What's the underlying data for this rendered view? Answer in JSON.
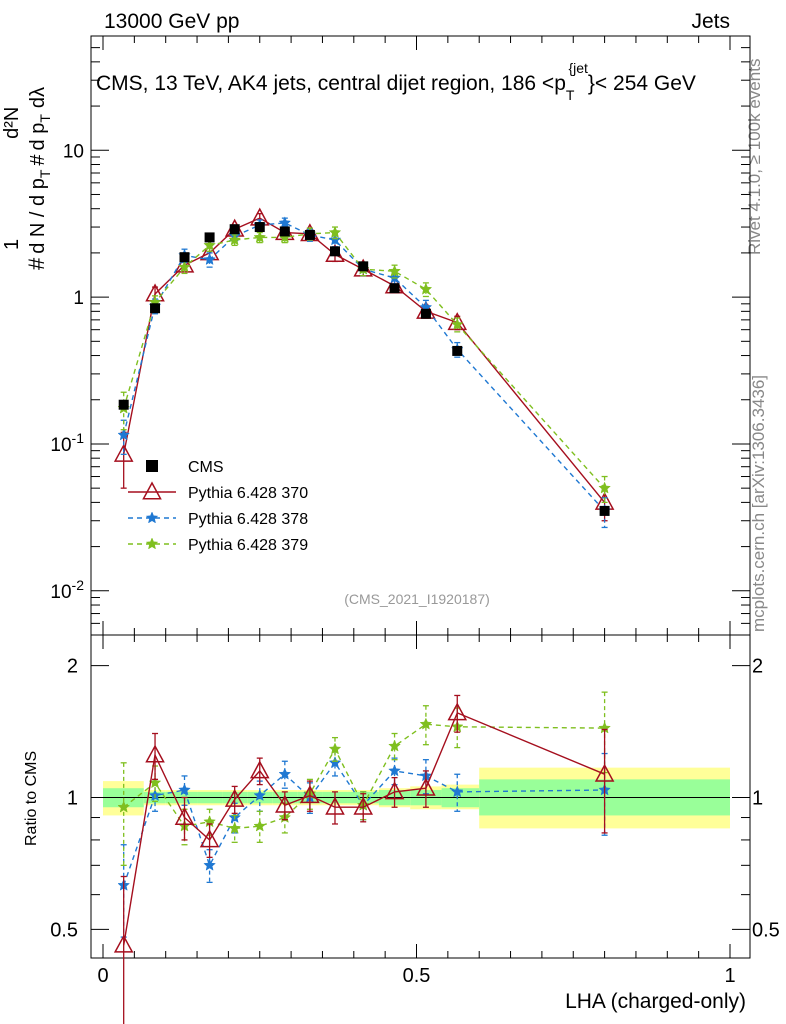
{
  "header": {
    "energy_label": "13000 GeV pp",
    "category_label": "Jets",
    "plot_title": "CMS, 13 TeV, AK4 jets, central dijet region, 186 < p_T^{jet} < 254 GeV",
    "analysis_id": "(CMS_2021_I1920187)"
  },
  "side_labels": {
    "rivet": "Rivet 4.1.0, ≥ 100k events",
    "site": "mcplots.cern.ch [arXiv:1306.3436]"
  },
  "colors": {
    "cms": "#000000",
    "p370": "#a50f1e",
    "p378": "#1f78d2",
    "p379": "#7fbf1f",
    "band_outer": "#ffff99",
    "band_inner": "#99ff99"
  },
  "chart_data": [
    {
      "type": "scatter",
      "name": "main",
      "yscale": "log",
      "xlim": [
        0,
        1
      ],
      "ylim": [
        0.005,
        60
      ],
      "xlabel": "",
      "ylabel": "1/dN/dp_T # d²N / dp_T # dλ",
      "yticks": [
        0.01,
        0.1,
        1,
        10
      ],
      "ytick_labels": [
        "10^-2",
        "10^-1",
        "1",
        "10"
      ],
      "series": [
        {
          "name": "CMS",
          "style": "square",
          "x": [
            0.033,
            0.083,
            0.13,
            0.17,
            0.21,
            0.25,
            0.29,
            0.33,
            0.37,
            0.415,
            0.465,
            0.515,
            0.565,
            0.8
          ],
          "y": [
            0.185,
            0.84,
            1.87,
            2.55,
            2.9,
            3.0,
            2.8,
            2.65,
            2.05,
            1.62,
            1.15,
            0.77,
            0.43,
            0.035
          ]
        },
        {
          "name": "Pythia 6.428 370",
          "style": "triangle",
          "line": "solid",
          "x": [
            0.033,
            0.083,
            0.13,
            0.17,
            0.21,
            0.25,
            0.29,
            0.33,
            0.37,
            0.415,
            0.465,
            0.515,
            0.565,
            0.8
          ],
          "y": [
            0.085,
            1.05,
            1.65,
            2.0,
            2.9,
            3.45,
            2.75,
            2.7,
            1.95,
            1.55,
            1.19,
            0.8,
            0.67,
            0.04
          ],
          "err": [
            0.035,
            0.12,
            0.12,
            0.2,
            0.2,
            0.25,
            0.25,
            0.25,
            0.2,
            0.15,
            0.1,
            0.08,
            0.07,
            0.01
          ]
        },
        {
          "name": "Pythia 6.428 378",
          "style": "star",
          "line": "dashed",
          "x": [
            0.033,
            0.083,
            0.13,
            0.17,
            0.21,
            0.25,
            0.29,
            0.33,
            0.37,
            0.415,
            0.465,
            0.515,
            0.565,
            0.8
          ],
          "y": [
            0.115,
            0.87,
            1.92,
            1.8,
            2.6,
            3.1,
            3.2,
            2.65,
            2.45,
            1.55,
            1.35,
            0.85,
            0.44,
            0.035
          ],
          "err": [
            0.03,
            0.1,
            0.2,
            0.2,
            0.2,
            0.25,
            0.25,
            0.25,
            0.25,
            0.15,
            0.12,
            0.1,
            0.05,
            0.008
          ]
        },
        {
          "name": "Pythia 6.428 379",
          "style": "star",
          "line": "dashed",
          "x": [
            0.033,
            0.083,
            0.13,
            0.17,
            0.21,
            0.25,
            0.29,
            0.33,
            0.37,
            0.415,
            0.465,
            0.515,
            0.565,
            0.8
          ],
          "y": [
            0.175,
            0.92,
            1.6,
            2.25,
            2.45,
            2.55,
            2.55,
            2.7,
            2.75,
            1.55,
            1.5,
            1.13,
            0.65,
            0.05
          ],
          "err": [
            0.05,
            0.1,
            0.15,
            0.2,
            0.2,
            0.2,
            0.2,
            0.25,
            0.25,
            0.15,
            0.15,
            0.12,
            0.07,
            0.01
          ]
        }
      ],
      "legend": [
        "CMS",
        "Pythia 6.428 370",
        "Pythia 6.428 378",
        "Pythia 6.428 379"
      ],
      "legend_position": "lower-left"
    },
    {
      "type": "scatter",
      "name": "ratio",
      "yscale": "log",
      "xlim": [
        0,
        1
      ],
      "ylim": [
        0.43,
        2.35
      ],
      "xlabel": "LHA (charged-only)",
      "ylabel": "Ratio to CMS",
      "xticks": [
        0,
        0.5,
        1
      ],
      "xtick_labels": [
        "0",
        "0.5",
        "1"
      ],
      "yticks": [
        0.5,
        1,
        2
      ],
      "ytick_labels": [
        "0.5",
        "1",
        "2"
      ],
      "bins": [
        [
          0.0,
          0.065
        ],
        [
          0.065,
          0.1
        ],
        [
          0.1,
          0.15
        ],
        [
          0.15,
          0.19
        ],
        [
          0.19,
          0.23
        ],
        [
          0.23,
          0.27
        ],
        [
          0.27,
          0.31
        ],
        [
          0.31,
          0.35
        ],
        [
          0.35,
          0.39
        ],
        [
          0.39,
          0.44
        ],
        [
          0.44,
          0.49
        ],
        [
          0.49,
          0.54
        ],
        [
          0.54,
          0.6
        ],
        [
          0.6,
          1.0
        ]
      ],
      "band_inner": [
        [
          0.95,
          1.05
        ],
        [
          0.97,
          1.03
        ],
        [
          0.97,
          1.03
        ],
        [
          0.97,
          1.03
        ],
        [
          0.97,
          1.03
        ],
        [
          0.97,
          1.03
        ],
        [
          0.97,
          1.03
        ],
        [
          0.97,
          1.03
        ],
        [
          0.97,
          1.03
        ],
        [
          0.97,
          1.03
        ],
        [
          0.96,
          1.04
        ],
        [
          0.96,
          1.04
        ],
        [
          0.95,
          1.05
        ],
        [
          0.91,
          1.1
        ]
      ],
      "band_outer": [
        [
          0.91,
          1.09
        ],
        [
          0.96,
          1.04
        ],
        [
          0.96,
          1.04
        ],
        [
          0.96,
          1.04
        ],
        [
          0.96,
          1.04
        ],
        [
          0.96,
          1.04
        ],
        [
          0.96,
          1.04
        ],
        [
          0.96,
          1.04
        ],
        [
          0.96,
          1.04
        ],
        [
          0.96,
          1.04
        ],
        [
          0.95,
          1.05
        ],
        [
          0.94,
          1.06
        ],
        [
          0.94,
          1.07
        ],
        [
          0.85,
          1.17
        ]
      ],
      "series": [
        {
          "name": "Pythia 6.428 370",
          "x": [
            0.033,
            0.083,
            0.13,
            0.17,
            0.21,
            0.25,
            0.29,
            0.33,
            0.37,
            0.415,
            0.465,
            0.515,
            0.565,
            0.8
          ],
          "y": [
            0.46,
            1.25,
            0.9,
            0.8,
            0.99,
            1.15,
            0.96,
            1.01,
            0.95,
            0.95,
            1.03,
            1.05,
            1.56,
            1.13
          ],
          "err": [
            0.2,
            0.15,
            0.1,
            0.07,
            0.07,
            0.08,
            0.07,
            0.08,
            0.08,
            0.07,
            0.08,
            0.1,
            0.15,
            0.3
          ]
        },
        {
          "name": "Pythia 6.428 378",
          "x": [
            0.033,
            0.083,
            0.13,
            0.17,
            0.21,
            0.25,
            0.29,
            0.33,
            0.37,
            0.415,
            0.465,
            0.515,
            0.565,
            0.8
          ],
          "y": [
            0.63,
            1.01,
            1.04,
            0.7,
            0.9,
            1.01,
            1.13,
            1.0,
            1.2,
            0.96,
            1.15,
            1.12,
            1.03,
            1.04
          ],
          "err": [
            0.15,
            0.08,
            0.08,
            0.06,
            0.07,
            0.08,
            0.08,
            0.08,
            0.08,
            0.07,
            0.08,
            0.1,
            0.1,
            0.22
          ]
        },
        {
          "name": "Pythia 6.428 379",
          "x": [
            0.033,
            0.083,
            0.13,
            0.17,
            0.21,
            0.25,
            0.29,
            0.33,
            0.37,
            0.415,
            0.465,
            0.515,
            0.565,
            0.8
          ],
          "y": [
            0.95,
            1.08,
            0.86,
            0.88,
            0.85,
            0.86,
            0.9,
            1.02,
            1.29,
            0.96,
            1.31,
            1.47,
            1.45,
            1.44
          ],
          "err": [
            0.25,
            0.1,
            0.08,
            0.06,
            0.06,
            0.07,
            0.07,
            0.08,
            0.08,
            0.07,
            0.09,
            0.15,
            0.15,
            0.3
          ]
        }
      ]
    }
  ]
}
